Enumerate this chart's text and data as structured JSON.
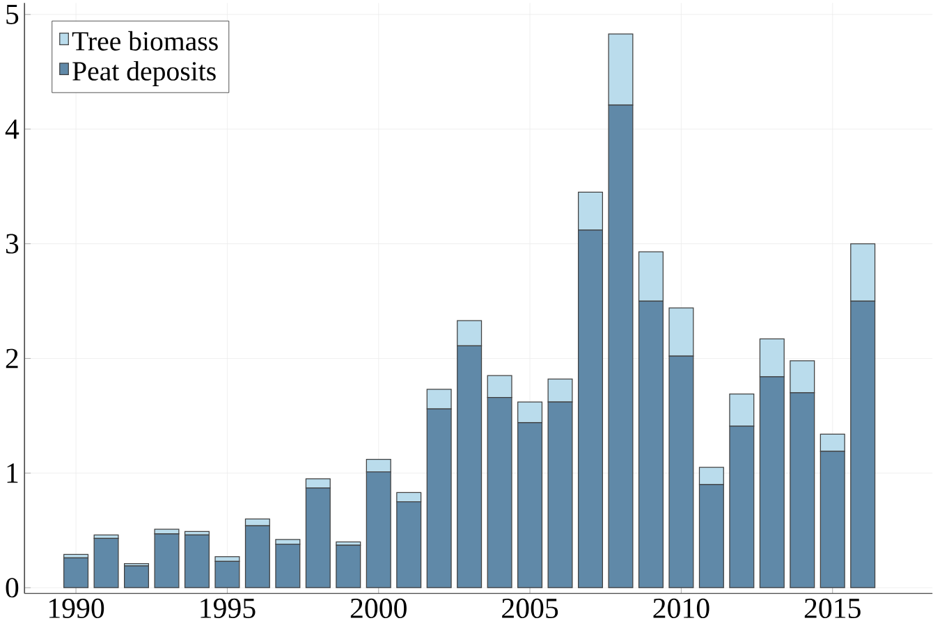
{
  "chart_data": {
    "type": "bar",
    "stacked": true,
    "x": [
      1990,
      1991,
      1992,
      1993,
      1994,
      1995,
      1996,
      1997,
      1998,
      1999,
      2000,
      2001,
      2002,
      2003,
      2004,
      2005,
      2006,
      2007,
      2008,
      2009,
      2010,
      2011,
      2012,
      2013,
      2014,
      2015,
      2016
    ],
    "series": [
      {
        "name": "Peat deposits",
        "color": "#6089a8",
        "values": [
          0.26,
          0.43,
          0.19,
          0.47,
          0.46,
          0.23,
          0.54,
          0.38,
          0.87,
          0.37,
          1.01,
          0.75,
          1.56,
          2.11,
          1.66,
          1.44,
          1.62,
          3.12,
          4.21,
          2.5,
          2.02,
          0.9,
          1.41,
          1.84,
          1.7,
          1.19,
          2.5
        ]
      },
      {
        "name": "Tree biomass",
        "color": "#badcec",
        "values": [
          0.03,
          0.03,
          0.02,
          0.04,
          0.03,
          0.04,
          0.06,
          0.04,
          0.08,
          0.03,
          0.11,
          0.08,
          0.17,
          0.22,
          0.19,
          0.18,
          0.2,
          0.33,
          0.62,
          0.43,
          0.42,
          0.15,
          0.28,
          0.33,
          0.28,
          0.15,
          0.5
        ]
      }
    ],
    "xlim": [
      1988.3,
      2018.3
    ],
    "xticks": [
      1990,
      1995,
      2000,
      2005,
      2010,
      2015
    ],
    "ylim": [
      -0.05,
      5.1
    ],
    "yticks": [
      0,
      1,
      2,
      3,
      4,
      5
    ],
    "grid": true,
    "legend": "top left"
  }
}
